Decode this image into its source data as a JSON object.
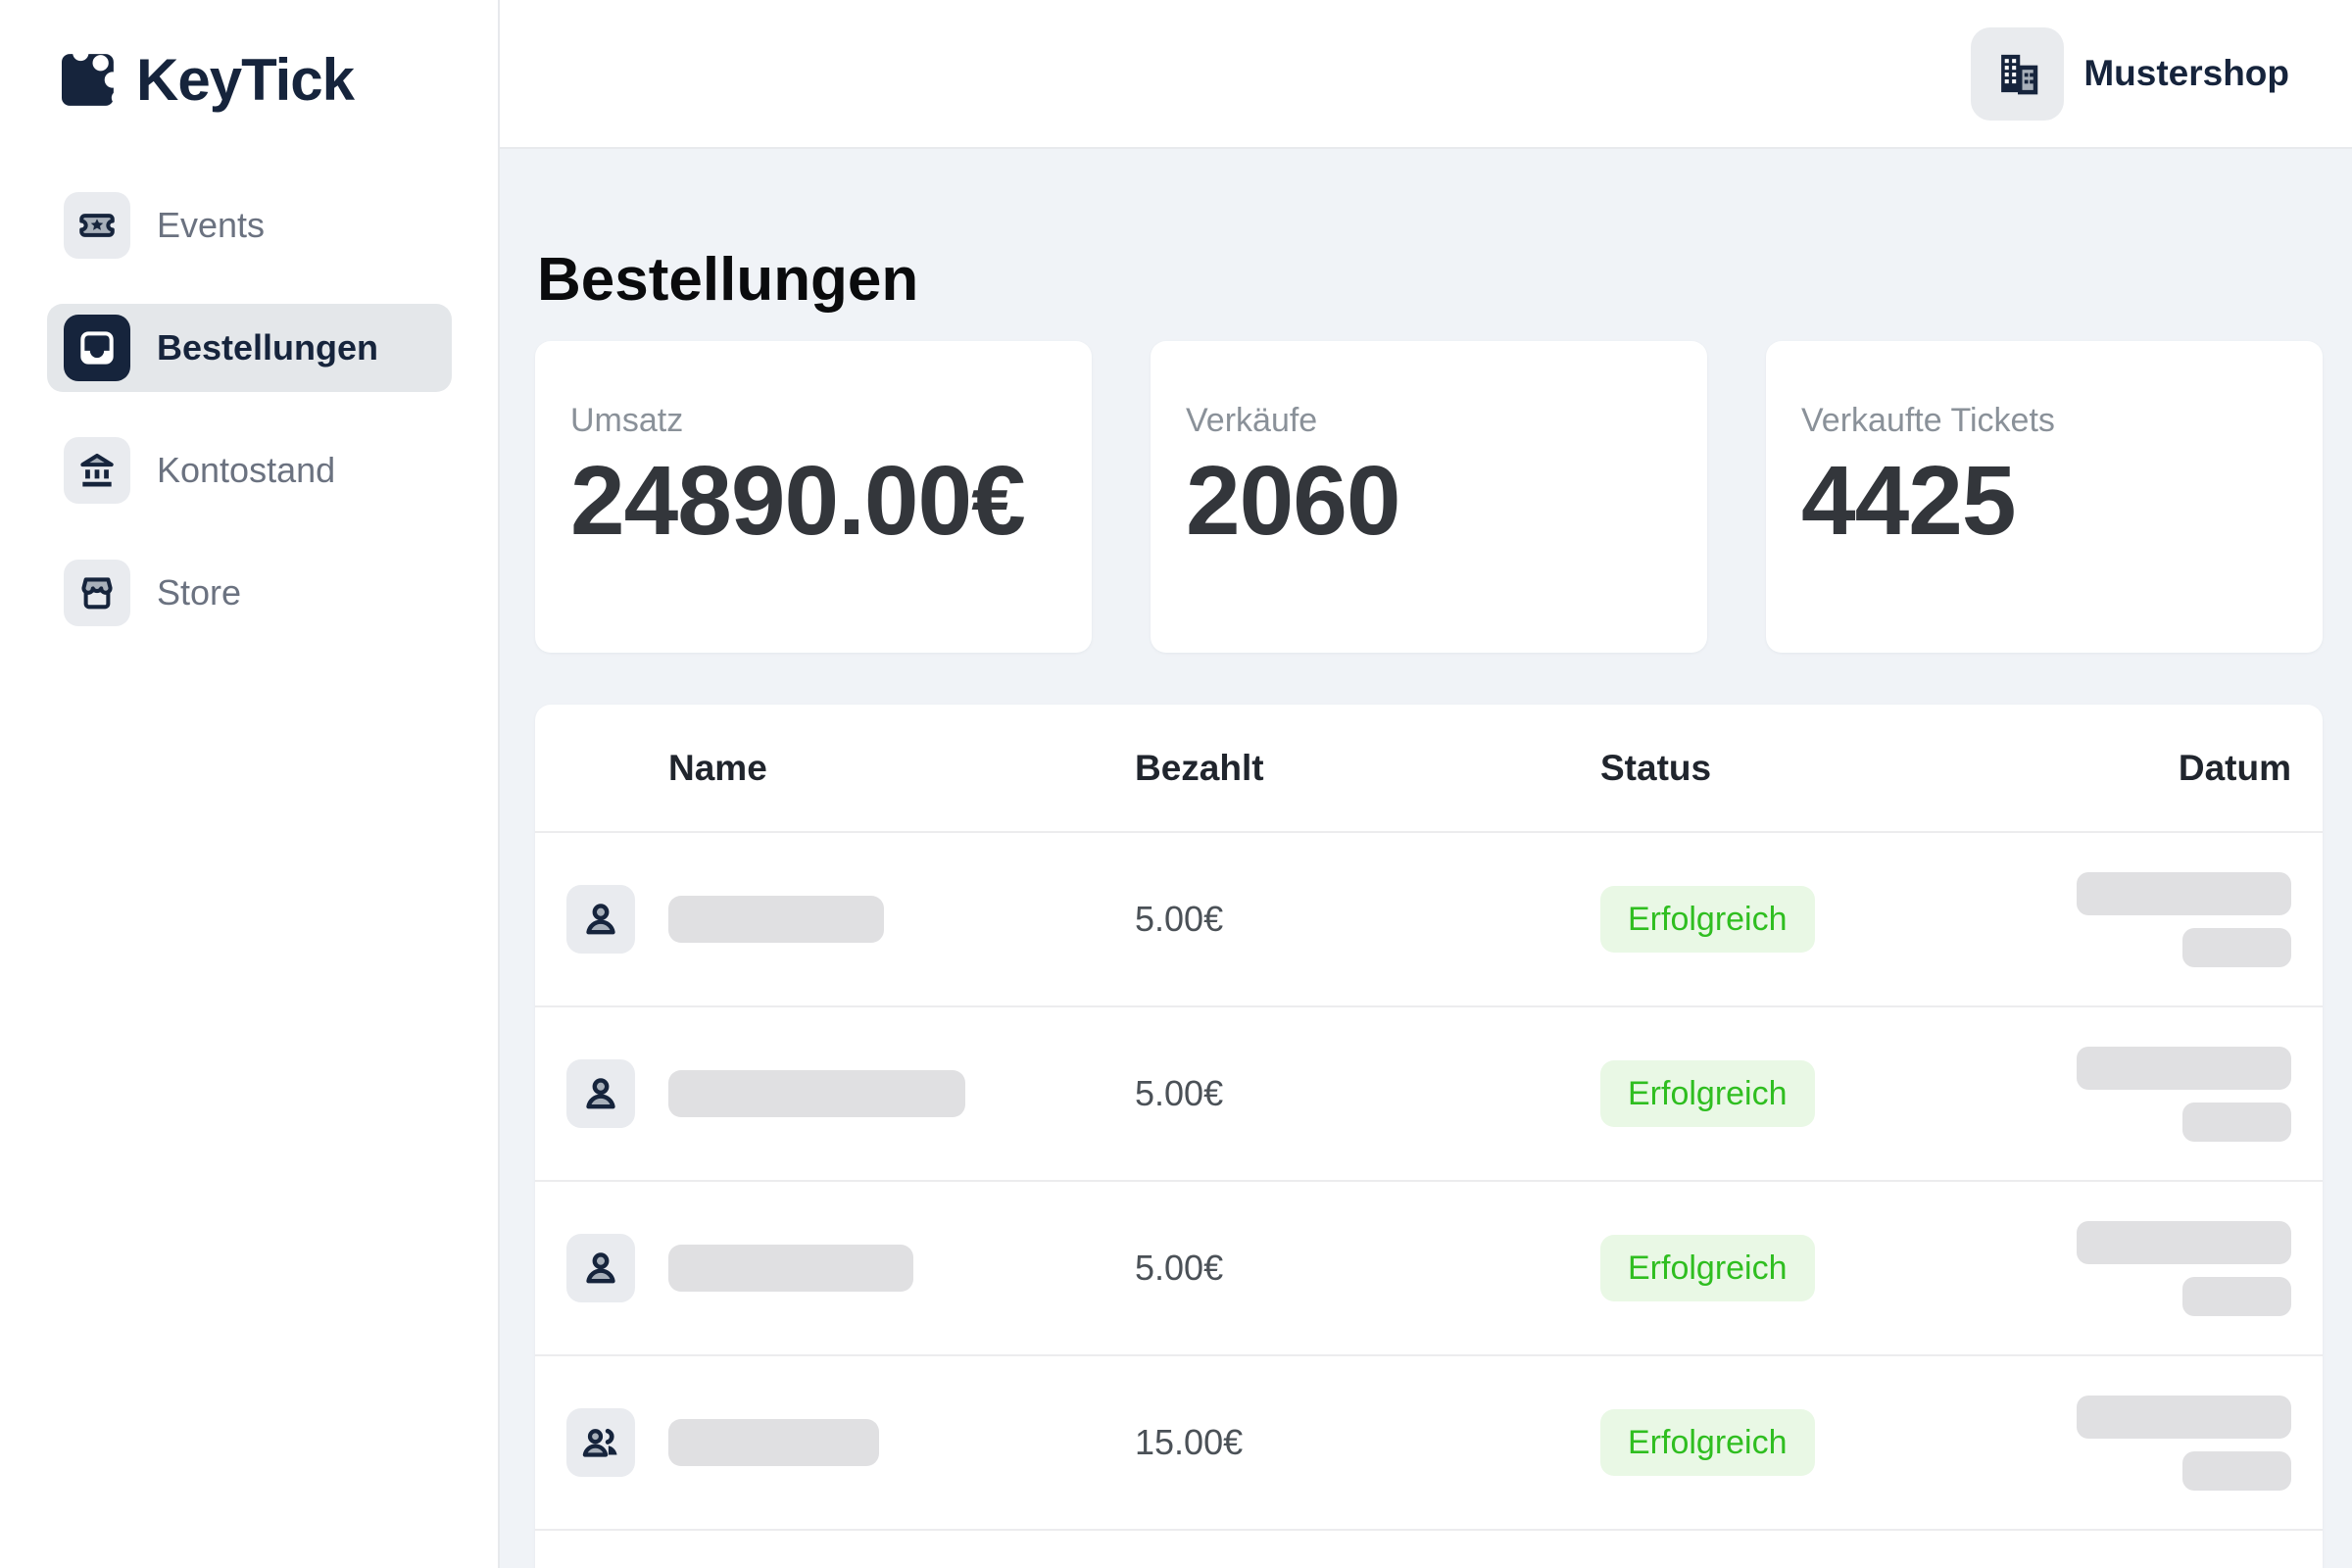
{
  "brand": {
    "name": "KeyTick"
  },
  "topbar": {
    "shop_name": "Mustershop"
  },
  "sidebar": {
    "items": [
      {
        "label": "Events",
        "active": false
      },
      {
        "label": "Bestellungen",
        "active": true
      },
      {
        "label": "Kontostand",
        "active": false
      },
      {
        "label": "Store",
        "active": false
      }
    ]
  },
  "page": {
    "title": "Bestellungen"
  },
  "stats": [
    {
      "label": "Umsatz",
      "value": "24890.00€"
    },
    {
      "label": "Verkäufe",
      "value": "2060"
    },
    {
      "label": "Verkaufte Tickets",
      "value": "4425"
    }
  ],
  "table": {
    "columns": [
      "Name",
      "Bezahlt",
      "Status",
      "Datum"
    ],
    "rows": [
      {
        "icon": "person",
        "name_redacted": true,
        "name_bar_width": 220,
        "paid": "5.00€",
        "status": "Erfolgreich",
        "date_redacted": true,
        "date_bar_widths": [
          219,
          111
        ]
      },
      {
        "icon": "person",
        "name_redacted": true,
        "name_bar_width": 303,
        "paid": "5.00€",
        "status": "Erfolgreich",
        "date_redacted": true,
        "date_bar_widths": [
          219,
          111
        ]
      },
      {
        "icon": "person",
        "name_redacted": true,
        "name_bar_width": 250,
        "paid": "5.00€",
        "status": "Erfolgreich",
        "date_redacted": true,
        "date_bar_widths": [
          219,
          111
        ]
      },
      {
        "icon": "group",
        "name_redacted": true,
        "name_bar_width": 215,
        "paid": "15.00€",
        "status": "Erfolgreich",
        "date_redacted": true,
        "date_bar_widths": [
          219,
          111
        ]
      }
    ]
  },
  "colors": {
    "brand_navy": "#16243c",
    "status_success_text": "#2fbe20",
    "status_success_bg": "#e9f8e5"
  }
}
